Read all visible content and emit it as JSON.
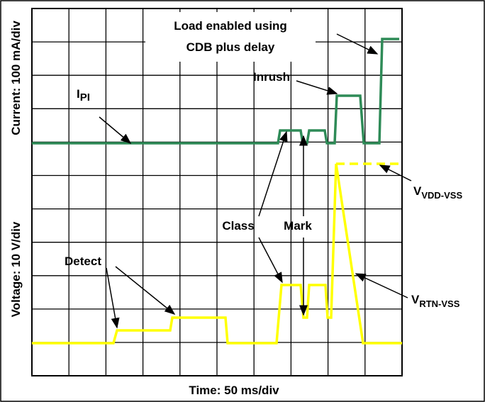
{
  "y_labels": {
    "current": "Current: 100 mA/div",
    "voltage": "Voltage: 10 V/div"
  },
  "x_label": "Time: 50 ms/div",
  "annotations": {
    "load_line1": "Load enabled using",
    "load_line2": "CDB plus delay",
    "inrush": "Inrush",
    "ipi": {
      "main": "I",
      "sub": "PI"
    },
    "class": "Class",
    "mark": "Mark",
    "detect": "Detect",
    "vdd": {
      "main": "V",
      "sub": "VDD-VSS"
    },
    "rtn": {
      "main": "V",
      "sub": "RTN-VSS"
    }
  }
}
